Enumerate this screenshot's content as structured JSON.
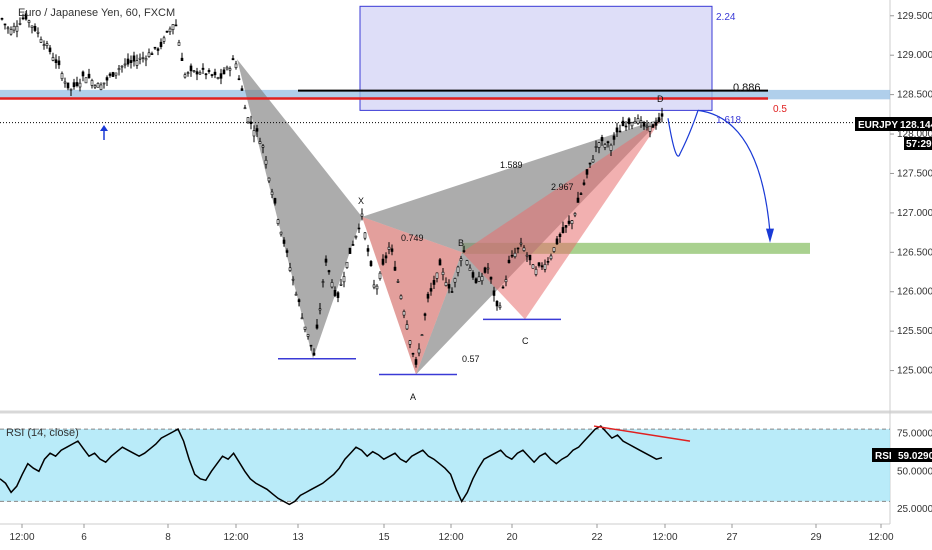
{
  "chart_data": [
    {
      "type": "candlestick",
      "title": "Euro / Japanese Yen, 60, FXCM",
      "symbol": "EURJPY",
      "current_price": "128.144",
      "countdown": "57:29",
      "ylim": [
        124.5,
        129.7
      ],
      "y_ticks": [
        "125.000",
        "125.500",
        "126.000",
        "126.500",
        "127.000",
        "127.500",
        "128.000",
        "128.500",
        "129.000",
        "129.500"
      ],
      "x_ticks": [
        "12:00",
        "6",
        "8",
        "12:00",
        "13",
        "15",
        "12:00",
        "20",
        "22",
        "12:00",
        "27",
        "29",
        "12:00"
      ],
      "price_path": [
        {
          "i": 0,
          "v": 129.5
        },
        {
          "i": 10,
          "v": 129.3
        },
        {
          "i": 25,
          "v": 129.5
        },
        {
          "i": 40,
          "v": 129.25
        },
        {
          "i": 55,
          "v": 128.95
        },
        {
          "i": 70,
          "v": 128.55
        },
        {
          "i": 85,
          "v": 128.75
        },
        {
          "i": 100,
          "v": 128.6
        },
        {
          "i": 120,
          "v": 128.85
        },
        {
          "i": 140,
          "v": 128.95
        },
        {
          "i": 160,
          "v": 129.1
        },
        {
          "i": 175,
          "v": 129.45
        },
        {
          "i": 185,
          "v": 128.75
        },
        {
          "i": 200,
          "v": 128.8
        },
        {
          "i": 220,
          "v": 128.7
        },
        {
          "i": 235,
          "v": 128.95
        },
        {
          "i": 248,
          "v": 128.2
        },
        {
          "i": 262,
          "v": 127.9
        },
        {
          "i": 277,
          "v": 127.0
        },
        {
          "i": 292,
          "v": 126.2
        },
        {
          "i": 304,
          "v": 125.6
        },
        {
          "i": 314,
          "v": 125.2
        },
        {
          "i": 326,
          "v": 126.4
        },
        {
          "i": 337,
          "v": 125.9
        },
        {
          "i": 350,
          "v": 126.5
        },
        {
          "i": 362,
          "v": 126.95
        },
        {
          "i": 375,
          "v": 126.0
        },
        {
          "i": 390,
          "v": 126.6
        },
        {
          "i": 402,
          "v": 125.9
        },
        {
          "i": 416,
          "v": 125.05
        },
        {
          "i": 428,
          "v": 125.9
        },
        {
          "i": 440,
          "v": 126.3
        },
        {
          "i": 452,
          "v": 126.0
        },
        {
          "i": 463,
          "v": 126.55
        },
        {
          "i": 476,
          "v": 126.1
        },
        {
          "i": 488,
          "v": 126.3
        },
        {
          "i": 498,
          "v": 125.75
        },
        {
          "i": 510,
          "v": 126.4
        },
        {
          "i": 522,
          "v": 126.6
        },
        {
          "i": 535,
          "v": 126.25
        },
        {
          "i": 548,
          "v": 126.4
        },
        {
          "i": 560,
          "v": 126.7
        },
        {
          "i": 572,
          "v": 126.9
        },
        {
          "i": 585,
          "v": 127.4
        },
        {
          "i": 598,
          "v": 127.9
        },
        {
          "i": 610,
          "v": 127.85
        },
        {
          "i": 622,
          "v": 128.1
        },
        {
          "i": 635,
          "v": 128.2
        },
        {
          "i": 648,
          "v": 128.05
        },
        {
          "i": 662,
          "v": 128.2
        }
      ],
      "harmonic_pattern": {
        "points": [
          {
            "label": "X",
            "v": 126.95
          },
          {
            "label": "A",
            "v": 124.95
          },
          {
            "label": "B",
            "v": 126.5
          },
          {
            "label": "C",
            "v": 125.65
          },
          {
            "label": "D",
            "v": 128.2
          }
        ],
        "ratios": [
          "0.749",
          "0.57",
          "1.589",
          "2.967"
        ]
      },
      "levels": [
        {
          "label": "2.24",
          "v": 129.62
        },
        {
          "label": "0.886",
          "v": 128.55
        },
        {
          "label": "0.5",
          "v": 128.45
        },
        {
          "label": "1.618",
          "v": 128.3
        }
      ],
      "zones": [
        {
          "kind": "target",
          "from": 126.48,
          "to": 126.62
        },
        {
          "kind": "resistance",
          "from": 128.44,
          "to": 128.56
        }
      ]
    },
    {
      "type": "line",
      "title": "RSI (14, close)",
      "current_value": "59.0290",
      "ylim": [
        15,
        88
      ],
      "y_ticks": [
        "25.0000",
        "50.0000",
        "75.0000"
      ],
      "band": [
        30,
        78
      ],
      "values": [
        45,
        42,
        36,
        40,
        48,
        55,
        52,
        50,
        58,
        62,
        60,
        64,
        66,
        68,
        70,
        65,
        60,
        62,
        58,
        56,
        60,
        63,
        66,
        64,
        62,
        60,
        62,
        65,
        68,
        72,
        74,
        76,
        78,
        70,
        58,
        48,
        45,
        44,
        50,
        55,
        60,
        58,
        62,
        56,
        50,
        45,
        42,
        40,
        38,
        35,
        32,
        30,
        28,
        30,
        34,
        36,
        38,
        40,
        42,
        45,
        48,
        52,
        58,
        62,
        66,
        64,
        60,
        63,
        61,
        58,
        60,
        62,
        58,
        56,
        60,
        62,
        64,
        60,
        58,
        55,
        52,
        48,
        38,
        30,
        36,
        45,
        52,
        58,
        60,
        62,
        64,
        60,
        58,
        62,
        64,
        60,
        56,
        60,
        62,
        58,
        55,
        58,
        60,
        64,
        66,
        70,
        74,
        78,
        80,
        76,
        72,
        74,
        70,
        68,
        66,
        64,
        62,
        60,
        58,
        59
      ],
      "divergence": {
        "from": 80,
        "to": 70
      }
    }
  ],
  "colors": {
    "candle": "#000000",
    "bearish_bat_fill": "#888888",
    "bullish_pattern_fill": "#c8403a",
    "resistance_zone": "#9cc3e6",
    "target_zone": "#8cc26a",
    "red_level": "#e02020",
    "blue_level": "#3a3ad6",
    "rsi_band": "#a8e6f8",
    "badge_bg": "#000000"
  }
}
